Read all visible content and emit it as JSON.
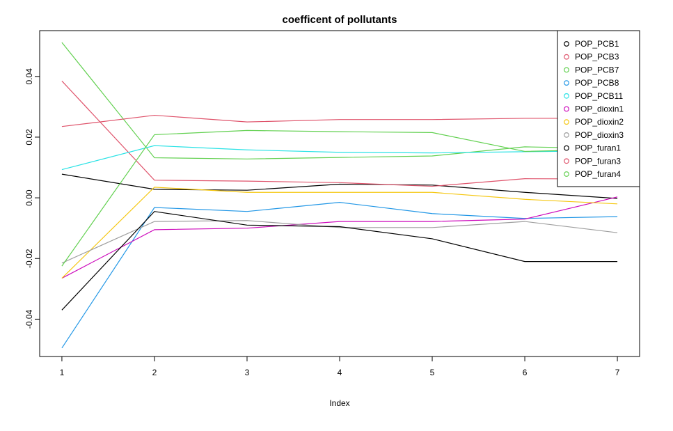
{
  "chart_data": {
    "type": "line",
    "title": "coefficent of pollutants",
    "xlabel": "Index",
    "ylabel": "",
    "x": [
      1,
      2,
      3,
      4,
      5,
      6,
      7
    ],
    "x_ticks": [
      "1",
      "2",
      "3",
      "4",
      "5",
      "6",
      "7"
    ],
    "y_ticks": [
      -0.04,
      -0.02,
      0.0,
      0.02,
      0.04
    ],
    "y_tick_labels": [
      "-0.04",
      "-0.02",
      "0.00",
      "0.02",
      "0.04"
    ],
    "xlim": [
      0.76,
      7.24
    ],
    "ylim": [
      -0.0523,
      0.0551
    ],
    "grid": false,
    "legend_position": "top-right",
    "series": [
      {
        "name": "POP_PCB1",
        "color": "#000000",
        "values": [
          0.0078,
          0.0028,
          0.0025,
          0.0045,
          0.0042,
          0.0018,
          -0.0002
        ]
      },
      {
        "name": "POP_PCB3",
        "color": "#DF536B",
        "values": [
          0.0385,
          0.0058,
          0.0055,
          0.005,
          0.0038,
          0.0063,
          0.0062
        ]
      },
      {
        "name": "POP_PCB7",
        "color": "#61D04F",
        "values": [
          0.0512,
          0.0132,
          0.0128,
          0.0133,
          0.0138,
          0.0168,
          0.0162
        ]
      },
      {
        "name": "POP_PCB8",
        "color": "#2297E6",
        "values": [
          -0.0495,
          -0.0032,
          -0.0045,
          -0.0015,
          -0.0052,
          -0.0068,
          -0.0062
        ]
      },
      {
        "name": "POP_PCB11",
        "color": "#28E2E5",
        "values": [
          0.0093,
          0.0172,
          0.0158,
          0.015,
          0.0148,
          0.0152,
          0.0155
        ]
      },
      {
        "name": "POP_dioxin1",
        "color": "#CD0BBC",
        "values": [
          -0.0265,
          -0.0105,
          -0.01,
          -0.0078,
          -0.0078,
          -0.007,
          0.0003
        ]
      },
      {
        "name": "POP_dioxin2",
        "color": "#F5C710",
        "values": [
          -0.0265,
          0.0035,
          0.0018,
          0.0018,
          0.0018,
          -0.0005,
          -0.002
        ]
      },
      {
        "name": "POP_dioxin3",
        "color": "#9E9E9E",
        "values": [
          -0.0215,
          -0.0078,
          -0.0075,
          -0.0098,
          -0.0098,
          -0.0078,
          -0.0115
        ]
      },
      {
        "name": "POP_furan1",
        "color": "#000000",
        "values": [
          -0.037,
          -0.0045,
          -0.009,
          -0.0095,
          -0.0135,
          -0.021,
          -0.021
        ]
      },
      {
        "name": "POP_furan3",
        "color": "#DF536B",
        "values": [
          0.0235,
          0.0272,
          0.025,
          0.0258,
          0.0258,
          0.0262,
          0.0262
        ]
      },
      {
        "name": "POP_furan4",
        "color": "#61D04F",
        "values": [
          -0.0225,
          0.0208,
          0.0222,
          0.0218,
          0.0215,
          0.0153,
          0.016
        ]
      }
    ]
  }
}
